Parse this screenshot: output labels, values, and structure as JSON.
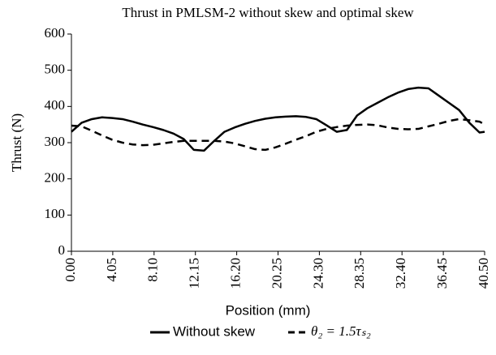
{
  "chart_data": {
    "type": "line",
    "title": "Thrust in PMLSM-2 without skew and optimal skew",
    "x_label": "Position (mm)",
    "y_label": "Thrust (N)",
    "x": [
      0,
      1,
      2,
      3,
      4,
      5,
      6,
      7,
      8,
      9,
      10,
      11,
      12,
      13,
      14,
      15,
      16,
      17,
      18,
      19,
      20,
      21,
      22,
      23,
      24,
      25,
      26,
      27,
      28,
      29,
      30,
      31,
      32,
      33,
      34,
      35,
      36,
      37,
      38,
      39,
      40,
      40.5
    ],
    "series": [
      {
        "name": "Without skew",
        "color": "#000000",
        "dash": "solid",
        "values": [
          330,
          355,
          365,
          370,
          368,
          365,
          358,
          350,
          343,
          335,
          325,
          310,
          280,
          278,
          305,
          330,
          342,
          352,
          360,
          366,
          370,
          372,
          373,
          371,
          365,
          348,
          330,
          335,
          375,
          395,
          410,
          425,
          438,
          448,
          452,
          450,
          430,
          410,
          390,
          355,
          328,
          330
        ]
      },
      {
        "name": "θ₂ = 1.5τₛ₂",
        "color": "#000000",
        "dash": "dashed",
        "values": [
          347,
          345,
          333,
          320,
          308,
          300,
          295,
          293,
          294,
          298,
          302,
          305,
          305,
          305,
          305,
          303,
          298,
          290,
          282,
          280,
          287,
          297,
          308,
          318,
          330,
          338,
          343,
          347,
          349,
          350,
          348,
          342,
          338,
          337,
          338,
          345,
          352,
          360,
          365,
          362,
          358,
          350
        ]
      }
    ],
    "xlim": [
      0,
      40.5
    ],
    "xticks": [
      {
        "value": 0,
        "label": "0.00"
      },
      4.05,
      {
        "value": 8.1,
        "label": "8.10"
      },
      12.15,
      {
        "value": 16.2,
        "label": "16.20"
      },
      20.25,
      {
        "value": 24.3,
        "label": "24.30"
      },
      28.35,
      {
        "value": 32.4,
        "label": "32.40"
      },
      36.45,
      {
        "value": 40.5,
        "label": "40.50"
      }
    ],
    "ylim": [
      0,
      600
    ],
    "yticks": [
      0,
      100,
      200,
      300,
      400,
      500,
      600
    ],
    "grid": false,
    "legend": "bottom"
  }
}
